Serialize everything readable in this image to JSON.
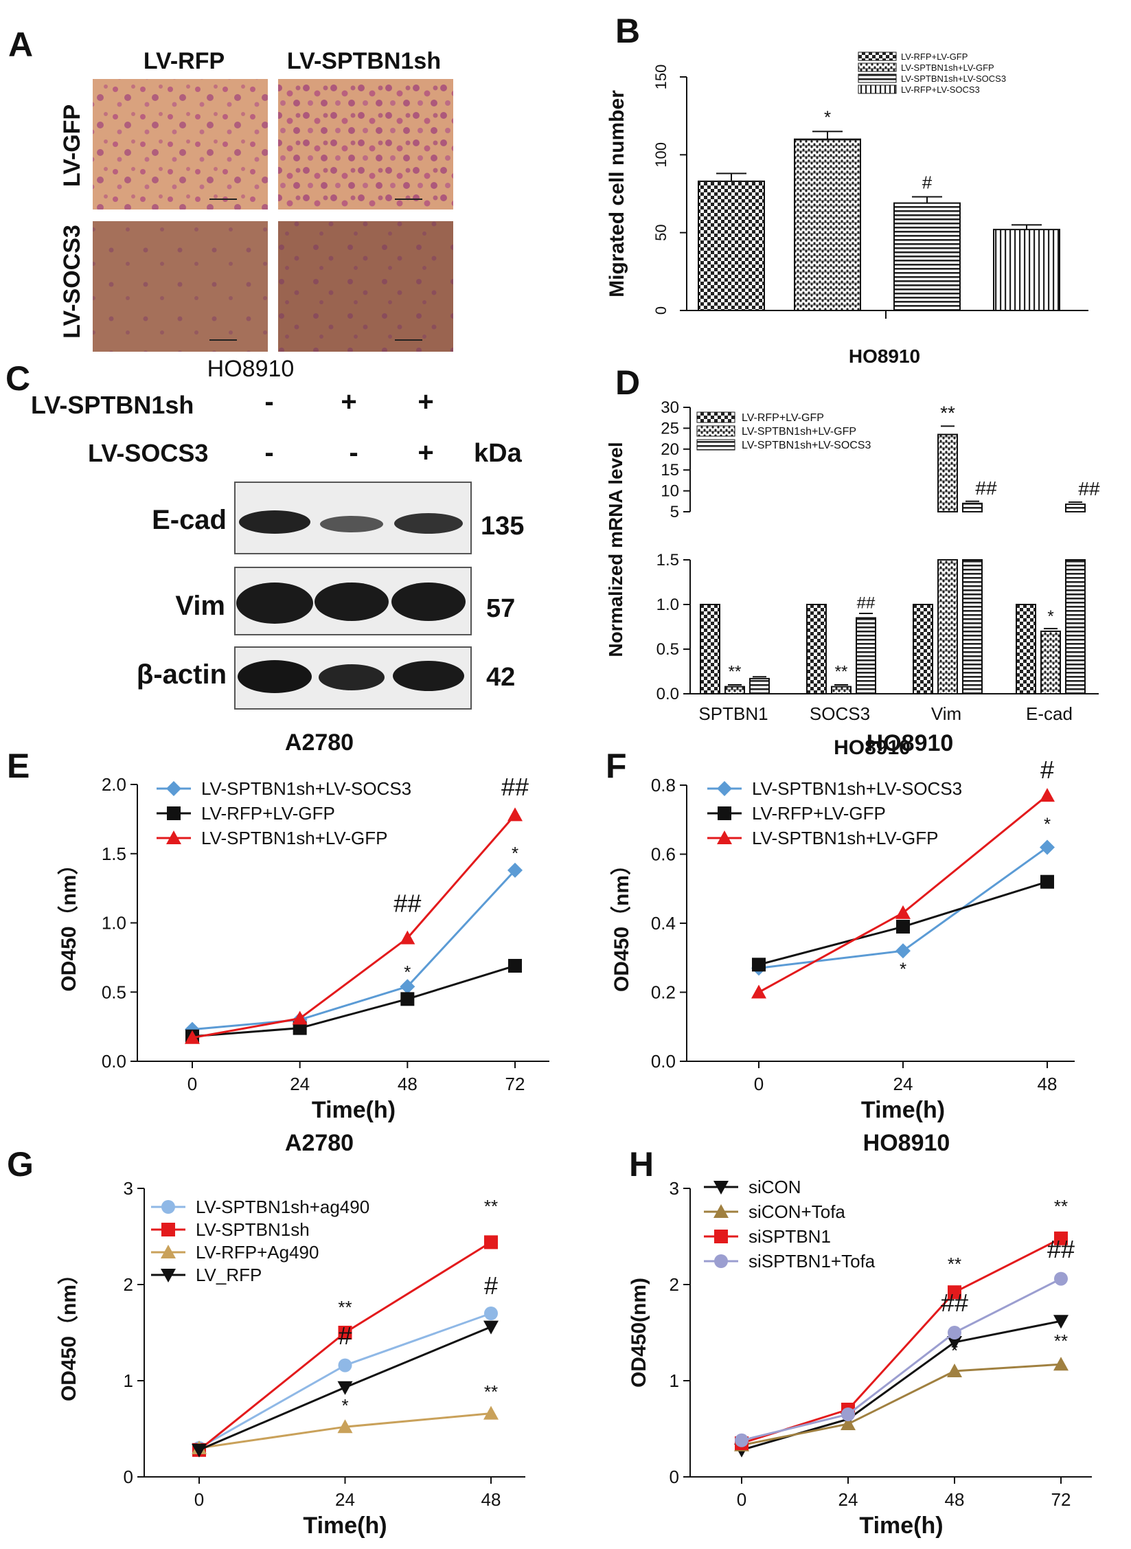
{
  "panel_letters": [
    "A",
    "B",
    "C",
    "D",
    "E",
    "F",
    "G",
    "H"
  ],
  "micrographs": {
    "col_labels": [
      "LV-RFP",
      "LV-SPTBN1sh"
    ],
    "row_labels": [
      "LV-GFP",
      "LV-SOCS3"
    ]
  },
  "western": {
    "cell_line": "HO8910",
    "row1_label": "LV-SPTBN1sh",
    "row1_marks": [
      "-",
      "+",
      "+"
    ],
    "row2_label": "LV-SOCS3",
    "row2_marks": [
      "-",
      "-",
      "+"
    ],
    "kda_label": "kDa",
    "bands": [
      {
        "name": "E-cad",
        "kda": "135"
      },
      {
        "name": "Vim",
        "kda": "57"
      },
      {
        "name": "β-actin",
        "kda": "42"
      }
    ]
  },
  "chart_data": [
    {
      "panel": "B",
      "type": "bar",
      "categories": [
        "LV-RFP+LV-GFP",
        "LV-SPTBN1sh+LV-GFP",
        "LV-SPTBN1sh+LV-SOCS3",
        "LV-RFP+LV-SOCS3"
      ],
      "values": [
        83,
        110,
        69,
        52
      ],
      "errors": [
        5,
        5,
        4,
        3
      ],
      "annotations": [
        "",
        "*",
        "#",
        ""
      ],
      "ylabel": "Migrated cell number",
      "xlabel": "HO8910",
      "ylim": [
        0,
        150
      ],
      "yticks": [
        "0",
        "50",
        "100",
        "150"
      ],
      "legend": [
        "LV-RFP+LV-GFP",
        "LV-SPTBN1sh+LV-GFP",
        "LV-SPTBN1sh+LV-SOCS3",
        "LV-RFP+LV-SOCS3"
      ]
    },
    {
      "panel": "D",
      "type": "bar",
      "categories": [
        "SPTBN1",
        "SOCS3",
        "Vim",
        "E-cad"
      ],
      "series": [
        {
          "name": "LV-RFP+LV-GFP",
          "values": [
            1.0,
            1.0,
            1.0,
            1.0
          ],
          "errors": [
            0,
            0,
            0,
            0
          ]
        },
        {
          "name": "LV-SPTBN1sh+LV-GFP",
          "values": [
            0.08,
            0.08,
            23.5,
            0.7
          ],
          "errors": [
            0.02,
            0.02,
            2,
            0.03
          ]
        },
        {
          "name": "LV-SPTBN1sh+LV-SOCS3",
          "values": [
            0.17,
            0.85,
            7.0,
            6.8
          ],
          "errors": [
            0.02,
            0.05,
            0.5,
            0.5
          ]
        }
      ],
      "annotations": [
        [
          "",
          "**",
          ""
        ],
        [
          "",
          "**",
          "##"
        ],
        [
          "",
          "**",
          "##"
        ],
        [
          "",
          "*",
          "##"
        ]
      ],
      "ylabel": "Normalized mRNA level",
      "xlabel": "HO8910",
      "yticks_low": [
        "0.0",
        "0.5",
        "1.0",
        "1.5"
      ],
      "yticks_high": [
        "5",
        "10",
        "15",
        "20",
        "25",
        "30"
      ]
    },
    {
      "panel": "E",
      "type": "line",
      "title": "A2780",
      "x": [
        0,
        24,
        48,
        72
      ],
      "xticks": [
        "0",
        "24",
        "48",
        "72"
      ],
      "ylim": [
        0,
        2.0
      ],
      "yticks": [
        "0.0",
        "0.5",
        "1.0",
        "1.5",
        "2.0"
      ],
      "xlabel": "Time(h)",
      "ylabel": "OD450（nm）",
      "series": [
        {
          "name": "LV-SPTBN1sh+LV-SOCS3",
          "color": "#5b9bd5",
          "marker": "diamond",
          "values": [
            0.23,
            0.3,
            0.54,
            1.38
          ]
        },
        {
          "name": "LV-RFP+LV-GFP",
          "color": "#111111",
          "marker": "square",
          "values": [
            0.18,
            0.24,
            0.45,
            0.69
          ]
        },
        {
          "name": "LV-SPTBN1sh+LV-GFP",
          "color": "#e31a1c",
          "marker": "triangle",
          "values": [
            0.17,
            0.31,
            0.89,
            1.78
          ]
        }
      ],
      "annotations": [
        {
          "x": 48,
          "y": 0.6,
          "text": "*"
        },
        {
          "x": 48,
          "y": 1.08,
          "text": "##"
        },
        {
          "x": 72,
          "y": 1.46,
          "text": "*"
        },
        {
          "x": 72,
          "y": 1.92,
          "text": "##"
        }
      ]
    },
    {
      "panel": "F",
      "type": "line",
      "title": "HO8910",
      "x": [
        0,
        24,
        48
      ],
      "xticks": [
        "0",
        "24",
        "48"
      ],
      "ylim": [
        0,
        0.8
      ],
      "yticks": [
        "0.0",
        "0.2",
        "0.4",
        "0.6",
        "0.8"
      ],
      "xlabel": "Time(h)",
      "ylabel": "OD450（nm）",
      "series": [
        {
          "name": "LV-SPTBN1sh+LV-SOCS3",
          "color": "#5b9bd5",
          "marker": "diamond",
          "values": [
            0.27,
            0.32,
            0.62
          ]
        },
        {
          "name": "LV-RFP+LV-GFP",
          "color": "#111111",
          "marker": "square",
          "values": [
            0.28,
            0.39,
            0.52
          ]
        },
        {
          "name": "LV-SPTBN1sh+LV-GFP",
          "color": "#e31a1c",
          "marker": "triangle",
          "values": [
            0.2,
            0.43,
            0.77
          ]
        }
      ],
      "annotations": [
        {
          "x": 24,
          "y": 0.25,
          "text": "*"
        },
        {
          "x": 48,
          "y": 0.67,
          "text": "*"
        },
        {
          "x": 48,
          "y": 0.82,
          "text": "#"
        }
      ]
    },
    {
      "panel": "G",
      "type": "line",
      "title": "A2780",
      "x": [
        0,
        24,
        48
      ],
      "xticks": [
        "0",
        "24",
        "48"
      ],
      "ylim": [
        0,
        3
      ],
      "yticks": [
        "0",
        "1",
        "2",
        "3"
      ],
      "xlabel": "Time(h)",
      "ylabel": "OD450（nm）",
      "series": [
        {
          "name": "LV-SPTBN1sh+ag490",
          "color": "#8fb8e6",
          "marker": "circle",
          "values": [
            0.3,
            1.16,
            1.7
          ]
        },
        {
          "name": "LV-SPTBN1sh",
          "color": "#e31a1c",
          "marker": "square",
          "values": [
            0.28,
            1.5,
            2.44
          ]
        },
        {
          "name": "LV-RFP+Ag490",
          "color": "#c9a15a",
          "marker": "triangle",
          "values": [
            0.3,
            0.52,
            0.66
          ]
        },
        {
          "name": "LV_RFP",
          "color": "#111111",
          "marker": "triangle-down",
          "values": [
            0.28,
            0.93,
            1.56
          ]
        }
      ],
      "annotations": [
        {
          "x": 24,
          "y": 1.7,
          "text": "**"
        },
        {
          "x": 24,
          "y": 1.38,
          "text": "#"
        },
        {
          "x": 24,
          "y": 0.68,
          "text": "*"
        },
        {
          "x": 48,
          "y": 2.75,
          "text": "**"
        },
        {
          "x": 48,
          "y": 1.9,
          "text": "#"
        },
        {
          "x": 48,
          "y": 0.82,
          "text": "**"
        }
      ]
    },
    {
      "panel": "H",
      "type": "line",
      "title": "HO8910",
      "x": [
        0,
        24,
        48,
        72
      ],
      "xticks": [
        "0",
        "24",
        "48",
        "72"
      ],
      "ylim": [
        0,
        3
      ],
      "yticks": [
        "0",
        "1",
        "2",
        "3"
      ],
      "xlabel": "Time(h)",
      "ylabel": "OD450(nm)",
      "series": [
        {
          "name": "siCON",
          "color": "#111111",
          "marker": "triangle-down",
          "values": [
            0.28,
            0.6,
            1.4,
            1.62
          ]
        },
        {
          "name": "siCON+Tofa",
          "color": "#a08040",
          "marker": "triangle",
          "values": [
            0.33,
            0.55,
            1.1,
            1.17
          ]
        },
        {
          "name": "siSPTBN1",
          "color": "#e31a1c",
          "marker": "square",
          "values": [
            0.35,
            0.7,
            1.92,
            2.48
          ]
        },
        {
          "name": "siSPTBN1+Tofa",
          "color": "#9b9ed0",
          "marker": "circle",
          "values": [
            0.38,
            0.65,
            1.5,
            2.06
          ]
        }
      ],
      "annotations": [
        {
          "x": 48,
          "y": 2.15,
          "text": "**"
        },
        {
          "x": 48,
          "y": 1.72,
          "text": "##"
        },
        {
          "x": 48,
          "y": 1.25,
          "text": "*"
        },
        {
          "x": 72,
          "y": 2.75,
          "text": "**"
        },
        {
          "x": 72,
          "y": 2.28,
          "text": "##"
        },
        {
          "x": 72,
          "y": 1.35,
          "text": "**"
        }
      ]
    }
  ]
}
